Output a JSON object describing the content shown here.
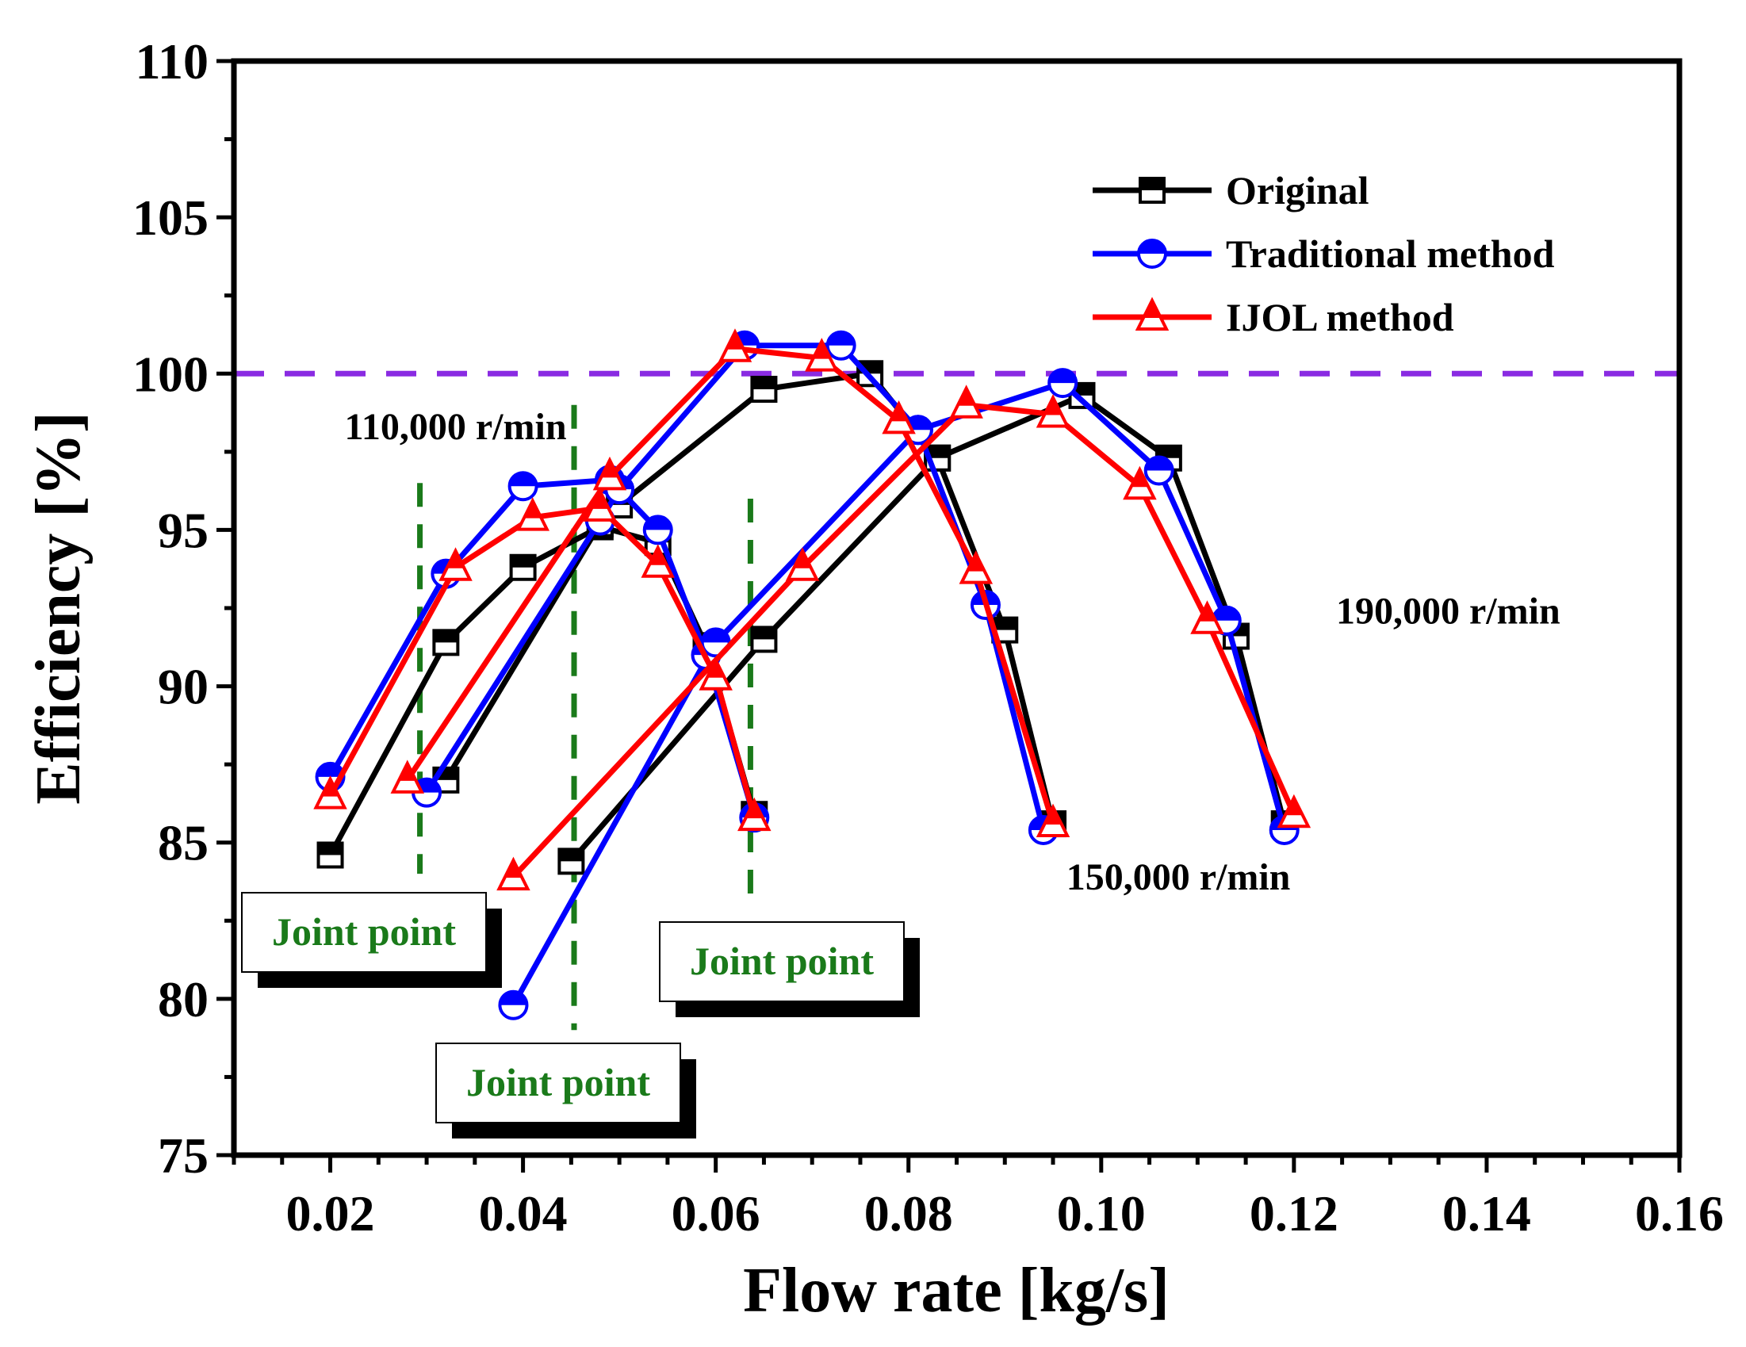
{
  "chart_data": {
    "type": "line",
    "xlabel": "Flow rate [kg/s]",
    "ylabel": "Efficiency [%]",
    "xlim": [
      0.01,
      0.16
    ],
    "ylim": [
      75,
      110
    ],
    "xticks": [
      "0.02",
      "0.04",
      "0.06",
      "0.08",
      "0.10",
      "0.12",
      "0.14",
      "0.16"
    ],
    "yticks": [
      "75",
      "80",
      "85",
      "90",
      "95",
      "100",
      "105",
      "110"
    ],
    "grid": false,
    "legend_position": "top-right",
    "reference_line": {
      "y": 100,
      "color": "#8a2be2"
    },
    "series": [
      {
        "name": "Original",
        "color": "#000000",
        "marker": "square",
        "segments": [
          [
            [
              0.02,
              84.6
            ],
            [
              0.032,
              91.4
            ],
            [
              0.04,
              93.8
            ],
            [
              0.048,
              95.1
            ],
            [
              0.054,
              94.6
            ],
            [
              0.059,
              91.3
            ],
            [
              0.064,
              85.9
            ]
          ],
          [
            [
              0.032,
              87.0
            ],
            [
              0.048,
              95.2
            ],
            [
              0.05,
              95.8
            ],
            [
              0.065,
              99.5
            ],
            [
              0.076,
              100.0
            ],
            [
              0.083,
              97.3
            ],
            [
              0.09,
              91.8
            ],
            [
              0.095,
              85.6
            ]
          ],
          [
            [
              0.045,
              84.4
            ],
            [
              0.065,
              91.5
            ],
            [
              0.083,
              97.3
            ],
            [
              0.098,
              99.3
            ],
            [
              0.107,
              97.3
            ],
            [
              0.114,
              91.6
            ],
            [
              0.119,
              85.6
            ]
          ]
        ]
      },
      {
        "name": "Traditional method",
        "color": "#0000ff",
        "marker": "circle",
        "segments": [
          [
            [
              0.02,
              87.1
            ],
            [
              0.032,
              93.6
            ],
            [
              0.04,
              96.4
            ],
            [
              0.049,
              96.6
            ],
            [
              0.054,
              95.0
            ],
            [
              0.059,
              91.0
            ],
            [
              0.064,
              85.8
            ]
          ],
          [
            [
              0.03,
              86.6
            ],
            [
              0.048,
              95.3
            ],
            [
              0.05,
              96.3
            ],
            [
              0.063,
              100.9
            ],
            [
              0.073,
              100.9
            ],
            [
              0.081,
              98.2
            ],
            [
              0.088,
              92.6
            ],
            [
              0.094,
              85.4
            ]
          ],
          [
            [
              0.039,
              79.8
            ],
            [
              0.06,
              91.4
            ],
            [
              0.081,
              98.2
            ],
            [
              0.096,
              99.7
            ],
            [
              0.106,
              96.9
            ],
            [
              0.113,
              92.1
            ],
            [
              0.119,
              85.4
            ]
          ]
        ]
      },
      {
        "name": "IJOL method",
        "color": "#ff0000",
        "marker": "triangle",
        "segments": [
          [
            [
              0.02,
              86.5
            ],
            [
              0.033,
              93.8
            ],
            [
              0.041,
              95.4
            ],
            [
              0.048,
              95.7
            ],
            [
              0.054,
              93.9
            ],
            [
              0.06,
              90.3
            ],
            [
              0.064,
              85.8
            ]
          ],
          [
            [
              0.028,
              87.0
            ],
            [
              0.049,
              96.7
            ],
            [
              0.062,
              100.8
            ],
            [
              0.071,
              100.5
            ],
            [
              0.079,
              98.5
            ],
            [
              0.087,
              93.7
            ],
            [
              0.095,
              85.6
            ]
          ],
          [
            [
              0.039,
              83.9
            ],
            [
              0.069,
              93.8
            ],
            [
              0.086,
              99.0
            ],
            [
              0.095,
              98.7
            ],
            [
              0.104,
              96.4
            ],
            [
              0.111,
              92.1
            ],
            [
              0.12,
              85.9
            ]
          ]
        ]
      }
    ],
    "annotations": [
      {
        "text": "110,000 r/min",
        "x": 0.033,
        "y": 97.9
      },
      {
        "text": "150,000 r/min",
        "x": 0.108,
        "y": 83.5
      },
      {
        "text": "190,000 r/min",
        "x": 0.136,
        "y": 92.0
      }
    ],
    "joint_points": [
      {
        "text": "Joint point",
        "x": 0.0293,
        "y_range": [
          84,
          96.5
        ]
      },
      {
        "text": "Joint point",
        "x": 0.0453,
        "y_range": [
          79,
          99
        ]
      },
      {
        "text": "Joint point",
        "x": 0.0636,
        "y_range": [
          83,
          96
        ]
      }
    ]
  }
}
